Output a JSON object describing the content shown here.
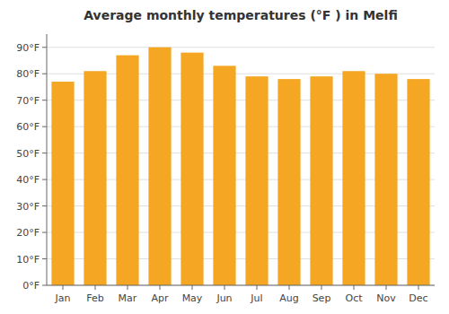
{
  "chart_data": {
    "type": "bar",
    "title": "Average monthly temperatures (°F ) in Melfi",
    "categories": [
      "Jan",
      "Feb",
      "Mar",
      "Apr",
      "May",
      "Jun",
      "Jul",
      "Aug",
      "Sep",
      "Oct",
      "Nov",
      "Dec"
    ],
    "values": [
      77,
      81,
      87,
      90,
      88,
      83,
      79,
      78,
      79,
      81,
      80,
      78
    ],
    "color": "#F5A623",
    "ylim": [
      0,
      95
    ],
    "yticks": [
      {
        "value": 0,
        "label": "0°F"
      },
      {
        "value": 10,
        "label": "10°F"
      },
      {
        "value": 20,
        "label": "20°F"
      },
      {
        "value": 30,
        "label": "30°F"
      },
      {
        "value": 40,
        "label": "40°F"
      },
      {
        "value": 50,
        "label": "50°F"
      },
      {
        "value": 60,
        "label": "60°F"
      },
      {
        "value": 70,
        "label": "70°F"
      },
      {
        "value": 80,
        "label": "80°F"
      },
      {
        "value": 90,
        "label": "90°F"
      }
    ],
    "grid": true
  }
}
